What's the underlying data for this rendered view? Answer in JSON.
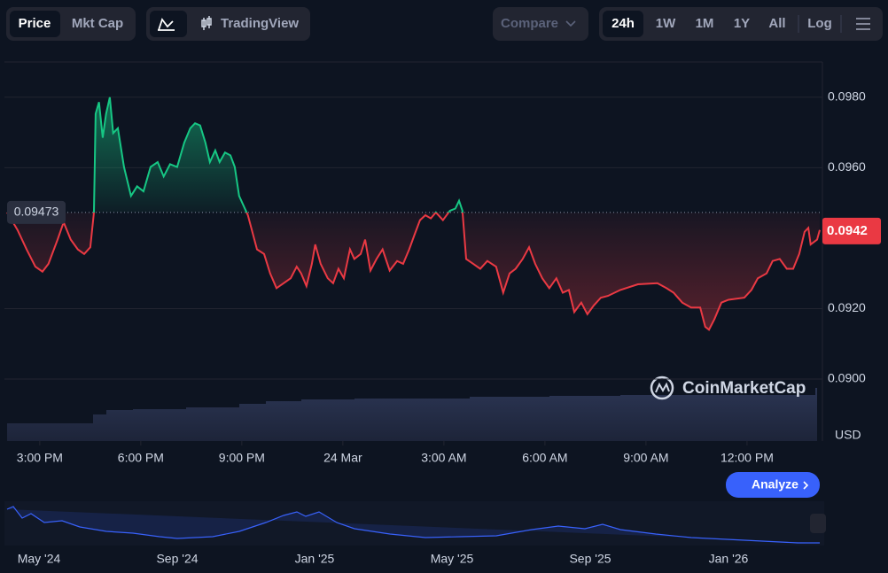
{
  "toolbar": {
    "price": "Price",
    "mkt_cap": "Mkt Cap",
    "tradingview": "TradingView",
    "compare": "Compare",
    "ranges": [
      "24h",
      "1W",
      "1M",
      "1Y",
      "All"
    ],
    "log": "Log"
  },
  "chart_data": {
    "type": "line",
    "color_up": "#16c784",
    "color_down": "#ea3943",
    "x": [
      -0.97,
      -0.66,
      -0.39,
      -0.13,
      0.08,
      0.26,
      0.53,
      0.71,
      0.92,
      1.13,
      1.32,
      1.5,
      1.61,
      1.66,
      1.76,
      1.87,
      1.97,
      2.08,
      2.18,
      2.32,
      2.5,
      2.71,
      2.89,
      3.08,
      3.29,
      3.5,
      3.68,
      3.87,
      4.08,
      4.29,
      4.47,
      4.61,
      4.76,
      4.92,
      5.05,
      5.21,
      5.34,
      5.5,
      5.66,
      5.79,
      5.92,
      6.18,
      6.45,
      6.66,
      6.84,
      7.03,
      7.24,
      7.45,
      7.63,
      7.76,
      7.92,
      8.08,
      8.18,
      8.34,
      8.55,
      8.71,
      8.87,
      9.03,
      9.21,
      9.34,
      9.53,
      9.66,
      9.82,
      10,
      10.18,
      10.39,
      10.61,
      10.79,
      10.97,
      11.13,
      11.29,
      11.45,
      11.61,
      11.76,
      11.97,
      12.18,
      12.34,
      12.45,
      12.55,
      12.66,
      12.87,
      13.08,
      13.29,
      13.55,
      13.76,
      13.95,
      14.13,
      14.34,
      14.53,
      14.71,
      14.92,
      15.13,
      15.34,
      15.53,
      15.71,
      15.87,
      16.08,
      16.26,
      16.45,
      16.66,
      16.87,
      17.24,
      17.76,
      18.34,
      18.61,
      18.82,
      19.08,
      19.34,
      19.61,
      19.76,
      19.87,
      20.03,
      20.24,
      20.45,
      20.92,
      21.13,
      21.32,
      21.58,
      21.76,
      21.97,
      22.18,
      22.37,
      22.55,
      22.71,
      22.82,
      22.89,
      23.08,
      23.16
    ],
    "values": [
      0.09473,
      0.09423,
      0.09368,
      0.09319,
      0.09305,
      0.09327,
      0.09396,
      0.09445,
      0.09396,
      0.09368,
      0.09355,
      0.09374,
      0.09473,
      0.09753,
      0.09786,
      0.09685,
      0.09753,
      0.098,
      0.09698,
      0.09712,
      0.09602,
      0.0952,
      0.09547,
      0.09533,
      0.09602,
      0.09616,
      0.09575,
      0.0961,
      0.09602,
      0.09671,
      0.09712,
      0.09726,
      0.0972,
      0.09671,
      0.09616,
      0.09649,
      0.09616,
      0.09643,
      0.09635,
      0.09602,
      0.0952,
      0.09465,
      0.09368,
      0.09355,
      0.093,
      0.09258,
      0.09272,
      0.09286,
      0.09319,
      0.093,
      0.09264,
      0.09327,
      0.09382,
      0.09327,
      0.09286,
      0.09272,
      0.09313,
      0.09286,
      0.09368,
      0.09341,
      0.09355,
      0.09396,
      0.09308,
      0.09341,
      0.09368,
      0.09308,
      0.09335,
      0.09327,
      0.09368,
      0.0941,
      0.09451,
      0.09465,
      0.09456,
      0.09473,
      0.09451,
      0.09478,
      0.09484,
      0.09506,
      0.09478,
      0.09341,
      0.09327,
      0.09313,
      0.09335,
      0.09319,
      0.09245,
      0.093,
      0.09313,
      0.09341,
      0.09374,
      0.09327,
      0.09286,
      0.09258,
      0.09286,
      0.09245,
      0.09253,
      0.0919,
      0.09217,
      0.09184,
      0.09209,
      0.09231,
      0.09236,
      0.09253,
      0.09269,
      0.09272,
      0.09258,
      0.09245,
      0.09217,
      0.09203,
      0.09203,
      0.09148,
      0.0914,
      0.0917,
      0.09217,
      0.09225,
      0.09231,
      0.09253,
      0.09286,
      0.093,
      0.09335,
      0.09341,
      0.09313,
      0.09313,
      0.09355,
      0.09418,
      0.09429,
      0.09382,
      0.09396,
      0.09423
    ],
    "xlim": [
      -0.97,
      23.16
    ],
    "xticks": [
      {
        "value": 0,
        "label": "3:00 PM"
      },
      {
        "value": 3,
        "label": "6:00 PM"
      },
      {
        "value": 6,
        "label": "9:00 PM"
      },
      {
        "value": 9,
        "label": "24 Mar"
      },
      {
        "value": 12,
        "label": "3:00 AM"
      },
      {
        "value": 15,
        "label": "6:00 AM"
      },
      {
        "value": 18,
        "label": "9:00 AM"
      },
      {
        "value": 21,
        "label": "12:00 PM"
      }
    ],
    "ylim": [
      0.08824,
      0.099
    ],
    "yticks": [
      {
        "value": 0.09,
        "label": "0.0900"
      },
      {
        "value": 0.092,
        "label": "0.0920"
      },
      {
        "value": 0.096,
        "label": "0.0960"
      },
      {
        "value": 0.098,
        "label": "0.0980"
      }
    ],
    "reference": {
      "value": 0.09473,
      "label": "0.09473"
    },
    "last_price": {
      "value": 0.0942,
      "label": "0.0942"
    },
    "unit": "USD",
    "watermark": "CoinMarketCap",
    "analyze": "Analyze",
    "navigator_labels": [
      "May '24",
      "Sep '24",
      "Jan '25",
      "May '25",
      "Sep '25",
      "Jan '26"
    ]
  }
}
